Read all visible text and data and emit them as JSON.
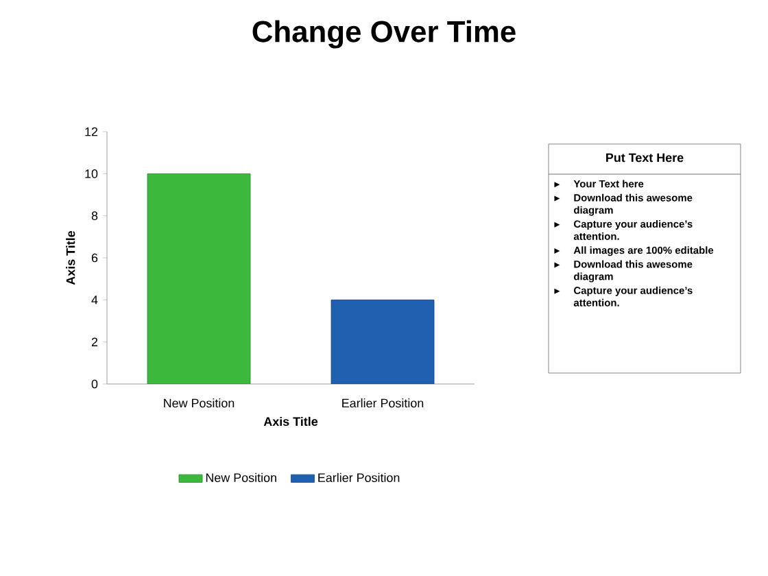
{
  "chart_data": {
    "type": "bar",
    "title": "Change Over Time",
    "categories": [
      "New Position",
      "Earlier Position"
    ],
    "series": [
      {
        "name": "New Position",
        "color": "#3cb83c",
        "values": [
          10,
          null
        ]
      },
      {
        "name": "Earlier Position",
        "color": "#1f5fb0",
        "values": [
          null,
          4
        ]
      }
    ],
    "xlabel": "Axis Title",
    "ylabel": "Axis Title",
    "ylim": [
      0,
      12
    ],
    "yticks": [
      0,
      2,
      4,
      6,
      8,
      10,
      12
    ],
    "legend": "bottom",
    "grid": false,
    "annotations": [
      "Put Text Here",
      "Your Text here",
      "Download this awesome diagram",
      "Capture your audience’s attention.",
      "All images are 100% editable",
      "Download this awesome diagram",
      "Capture your audience’s attention."
    ]
  }
}
